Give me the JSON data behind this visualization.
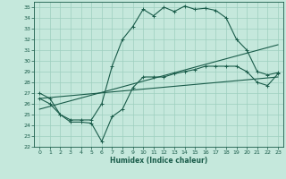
{
  "xlabel": "Humidex (Indice chaleur)",
  "xlim": [
    -0.5,
    23.5
  ],
  "ylim": [
    22,
    35.5
  ],
  "yticks": [
    22,
    23,
    24,
    25,
    26,
    27,
    28,
    29,
    30,
    31,
    32,
    33,
    34,
    35
  ],
  "xticks": [
    0,
    1,
    2,
    3,
    4,
    5,
    6,
    7,
    8,
    9,
    10,
    11,
    12,
    13,
    14,
    15,
    16,
    17,
    18,
    19,
    20,
    21,
    22,
    23
  ],
  "bg_color": "#c5e8dc",
  "grid_color": "#9dcfbe",
  "line_color": "#1a5c4a",
  "line1_x": [
    0,
    1,
    2,
    3,
    4,
    5,
    6,
    7,
    8,
    9,
    10,
    11,
    12,
    13,
    14,
    15,
    16,
    17,
    18,
    19,
    20,
    21,
    22,
    23
  ],
  "line1_y": [
    27.0,
    26.5,
    25.0,
    24.5,
    24.5,
    24.5,
    26.0,
    29.5,
    32.0,
    33.2,
    34.8,
    34.2,
    35.0,
    34.6,
    35.1,
    34.8,
    34.9,
    34.7,
    34.0,
    32.0,
    31.0,
    29.0,
    28.7,
    28.9
  ],
  "line2_x": [
    0,
    1,
    2,
    3,
    4,
    5,
    6,
    7,
    8,
    9,
    10,
    11,
    12,
    13,
    14,
    15,
    16,
    17,
    18,
    19,
    20,
    21,
    22,
    23
  ],
  "line2_y": [
    26.5,
    26.0,
    25.0,
    24.3,
    24.3,
    24.2,
    22.5,
    24.8,
    25.5,
    27.5,
    28.5,
    28.5,
    28.5,
    28.8,
    29.0,
    29.2,
    29.5,
    29.5,
    29.5,
    29.5,
    29.0,
    28.0,
    27.7,
    28.8
  ],
  "line3_x": [
    0,
    23
  ],
  "line3_y": [
    25.5,
    31.5
  ],
  "line4_x": [
    0,
    23
  ],
  "line4_y": [
    26.5,
    28.5
  ]
}
